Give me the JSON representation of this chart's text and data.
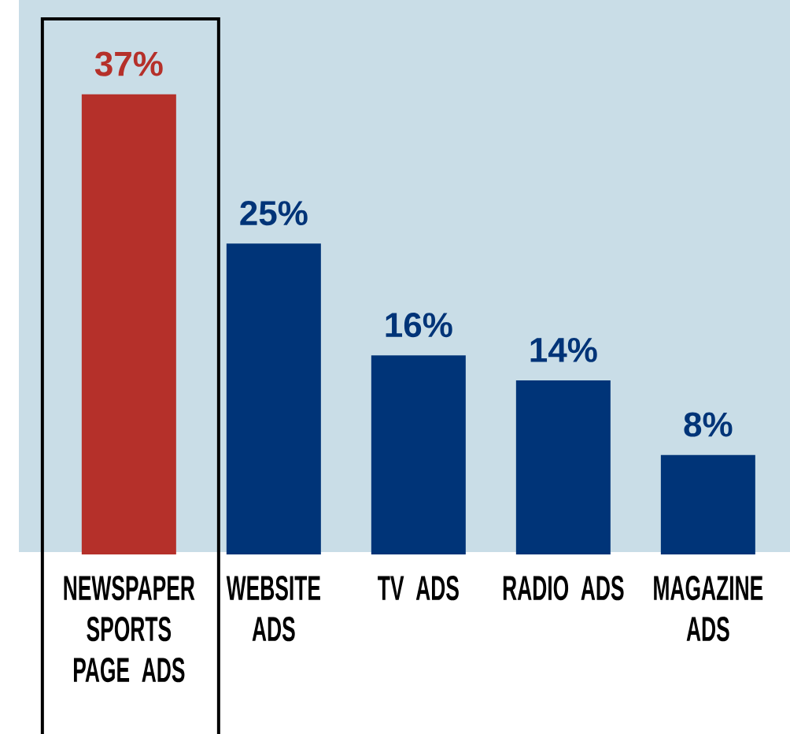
{
  "chart_data": {
    "type": "bar",
    "categories": [
      "NEWSPAPER SPORTS PAGE ADS",
      "WEBSITE ADS",
      "TV ADS",
      "RADIO ADS",
      "MAGAZINE ADS"
    ],
    "values": [
      37,
      25,
      16,
      14,
      8
    ],
    "colors": [
      "#b5302a",
      "#003478",
      "#003478",
      "#003478",
      "#003478"
    ],
    "value_labels": [
      "37%",
      "25%",
      "16%",
      "14%",
      "8%"
    ]
  }
}
